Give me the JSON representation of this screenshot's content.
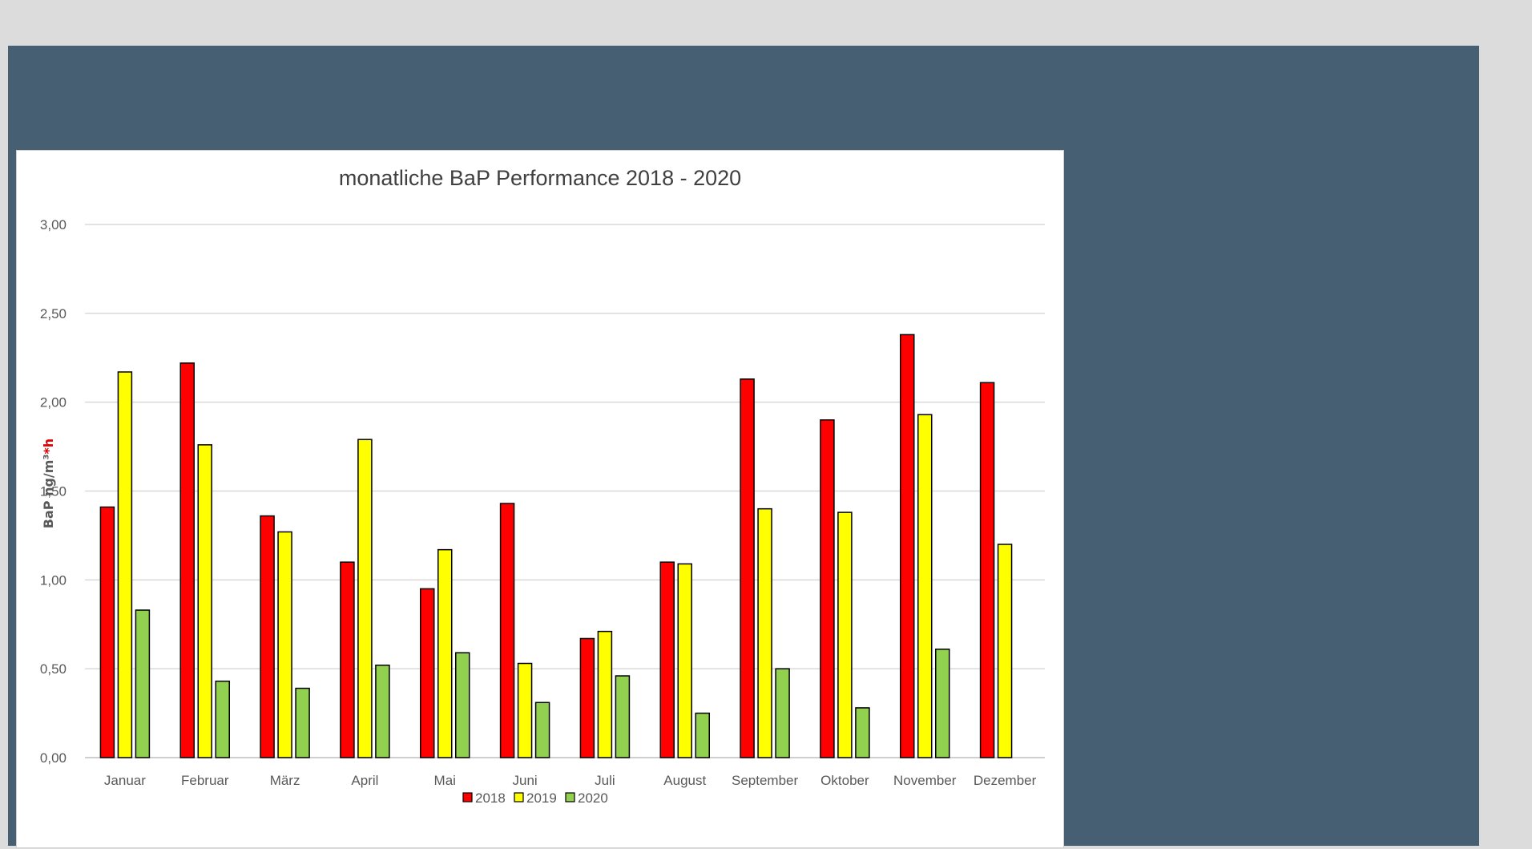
{
  "chart_data": {
    "type": "bar",
    "title": "monatliche BaP Performance  2018 - 2020",
    "ylabel": "BaP ng/m³",
    "ylabel_suffix": "*h",
    "ylabel_suffix_color": "#e00000",
    "xlabel": "",
    "ylim": [
      0,
      3
    ],
    "yticks": [
      "0,00",
      "0,50",
      "1,00",
      "1,50",
      "2,00",
      "2,50",
      "3,00"
    ],
    "grid": true,
    "legend_position": "bottom",
    "categories": [
      "Januar",
      "Februar",
      "März",
      "April",
      "Mai",
      "Juni",
      "Juli",
      "August",
      "September",
      "Oktober",
      "November",
      "Dezember"
    ],
    "series": [
      {
        "name": "2018",
        "color": "#ff0000",
        "values": [
          1.41,
          2.22,
          1.36,
          1.1,
          0.95,
          1.43,
          0.67,
          1.1,
          2.13,
          1.9,
          2.38,
          2.11
        ]
      },
      {
        "name": "2019",
        "color": "#ffff00",
        "values": [
          2.17,
          1.76,
          1.27,
          1.79,
          1.17,
          0.53,
          0.71,
          1.09,
          1.4,
          1.38,
          1.93,
          1.2
        ]
      },
      {
        "name": "2020",
        "color": "#92d050",
        "values": [
          0.83,
          0.43,
          0.39,
          0.52,
          0.59,
          0.31,
          0.46,
          0.25,
          0.5,
          0.28,
          0.61,
          null
        ]
      }
    ]
  }
}
